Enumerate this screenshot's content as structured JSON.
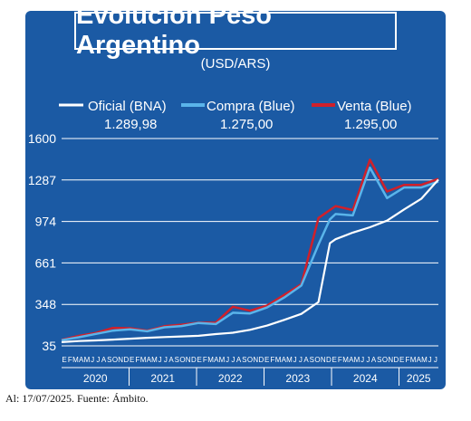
{
  "colors": {
    "background": "#1b5aa4",
    "oficial": "#ffffff",
    "compra": "#5ab4ea",
    "venta": "#d0202a",
    "text": "#ffffff"
  },
  "footnote": "Al: 17/07/2025. Fuente: Ámbito.",
  "chart_data": {
    "type": "line",
    "title": "Evolución Peso Argentino",
    "subtitle": "(USD/ARS)",
    "xlabel": "",
    "ylabel": "",
    "ylim": [
      35,
      1600
    ],
    "yticks": [
      35,
      348,
      661,
      974,
      1287,
      1600
    ],
    "grid": true,
    "legend_position": "top",
    "x_range": [
      "2020-01",
      "2025-07"
    ],
    "month_letters": [
      "E",
      "F",
      "M",
      "A",
      "M",
      "J",
      "J",
      "A",
      "S",
      "O",
      "N",
      "D"
    ],
    "years": [
      "2020",
      "2021",
      "2022",
      "2023",
      "2024",
      "2025"
    ],
    "last_values": [
      "1.289,98",
      "1.275,00",
      "1.295,00"
    ],
    "x": [
      "2020-01",
      "2020-04",
      "2020-07",
      "2020-10",
      "2021-01",
      "2021-04",
      "2021-07",
      "2021-10",
      "2022-01",
      "2022-04",
      "2022-07",
      "2022-10",
      "2023-01",
      "2023-04",
      "2023-07",
      "2023-10",
      "2023-12",
      "2024-01",
      "2024-04",
      "2024-07",
      "2024-10",
      "2025-01",
      "2025-04",
      "2025-07"
    ],
    "series": [
      {
        "name": "Oficial (BNA)",
        "values": [
          63,
          71,
          76,
          82,
          89,
          96,
          101,
          106,
          111,
          124,
          134,
          156,
          188,
          231,
          276,
          366,
          810,
          840,
          890,
          930,
          980,
          1065,
          1145,
          1290
        ]
      },
      {
        "name": "Compra (Blue)",
        "values": [
          78,
          100,
          125,
          150,
          160,
          145,
          175,
          185,
          208,
          200,
          285,
          280,
          325,
          400,
          490,
          800,
          990,
          1030,
          1020,
          1380,
          1150,
          1230,
          1230,
          1275
        ]
      },
      {
        "name": "Venta (Blue)",
        "values": [
          80,
          110,
          133,
          170,
          168,
          150,
          183,
          195,
          210,
          210,
          330,
          300,
          340,
          420,
          500,
          1000,
          1060,
          1090,
          1060,
          1440,
          1200,
          1250,
          1250,
          1295
        ]
      }
    ]
  }
}
